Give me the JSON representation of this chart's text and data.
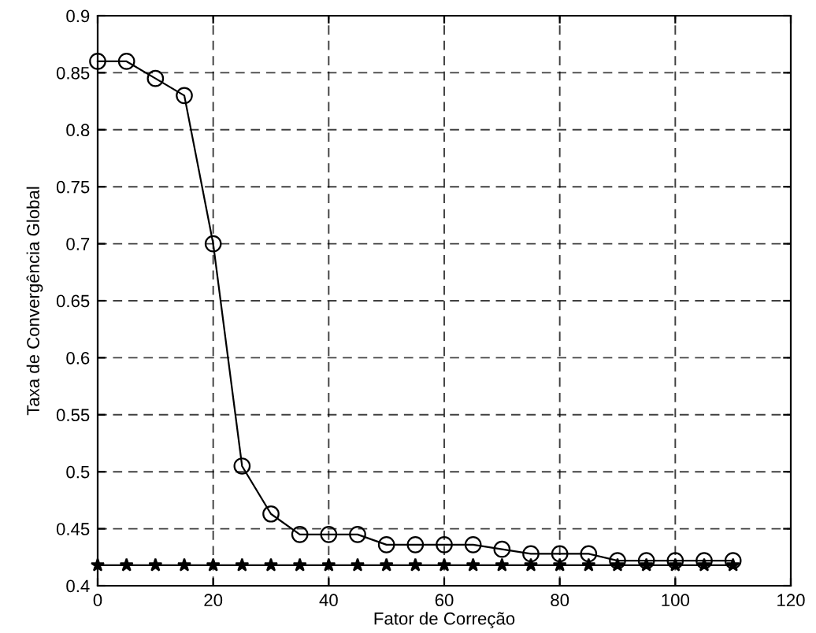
{
  "chart_data": {
    "type": "line",
    "xlabel": "Fator de Correção",
    "ylabel": "Taxa de Convergência Global",
    "xlim": [
      0,
      120
    ],
    "xticks": [
      0,
      20,
      40,
      60,
      80,
      100,
      120
    ],
    "ylim": [
      0.4,
      0.9
    ],
    "yticks": [
      0.4,
      0.45,
      0.5,
      0.55,
      0.6,
      0.65,
      0.7,
      0.75,
      0.8,
      0.85,
      0.9
    ],
    "grid": true,
    "line_style": "solid",
    "series": [
      {
        "color": "#000000",
        "marker": "circle",
        "x": [
          0,
          5,
          10,
          15,
          20,
          25,
          30,
          35,
          40,
          45,
          50,
          55,
          60,
          65,
          70,
          75,
          80,
          85,
          90,
          95,
          100,
          105,
          110
        ],
        "values": [
          0.86,
          0.86,
          0.845,
          0.83,
          0.7,
          0.505,
          0.463,
          0.445,
          0.445,
          0.445,
          0.436,
          0.436,
          0.436,
          0.436,
          0.432,
          0.428,
          0.428,
          0.428,
          0.422,
          0.422,
          0.422,
          0.422,
          0.422
        ]
      },
      {
        "color": "#000000",
        "marker": "star",
        "x": [
          0,
          5,
          10,
          15,
          20,
          25,
          30,
          35,
          40,
          45,
          50,
          55,
          60,
          65,
          70,
          75,
          80,
          85,
          90,
          95,
          100,
          105,
          110
        ],
        "values": [
          0.418,
          0.418,
          0.418,
          0.418,
          0.418,
          0.418,
          0.418,
          0.418,
          0.418,
          0.418,
          0.418,
          0.418,
          0.418,
          0.418,
          0.418,
          0.418,
          0.418,
          0.418,
          0.418,
          0.418,
          0.418,
          0.418,
          0.418
        ]
      }
    ]
  }
}
